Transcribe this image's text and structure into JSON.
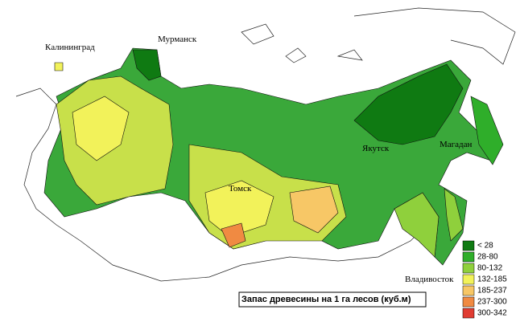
{
  "map": {
    "title": "Запас древесины на 1 га лесов (куб.м)",
    "cities": [
      {
        "label": "Калининград"
      },
      {
        "label": "Мурманск"
      },
      {
        "label": "Якутск"
      },
      {
        "label": "Магадан"
      },
      {
        "label": "Томск"
      },
      {
        "label": "Владивосток"
      }
    ],
    "legend": [
      {
        "label": "< 28",
        "color": "#0f7a12"
      },
      {
        "label": "28-80",
        "color": "#2fae2a"
      },
      {
        "label": "80-132",
        "color": "#8fd03c"
      },
      {
        "label": "132-185",
        "color": "#f2f25a"
      },
      {
        "label": "185-237",
        "color": "#f7c766"
      },
      {
        "label": "237-300",
        "color": "#f08a42"
      },
      {
        "label": "300-342",
        "color": "#e03c32"
      }
    ]
  }
}
